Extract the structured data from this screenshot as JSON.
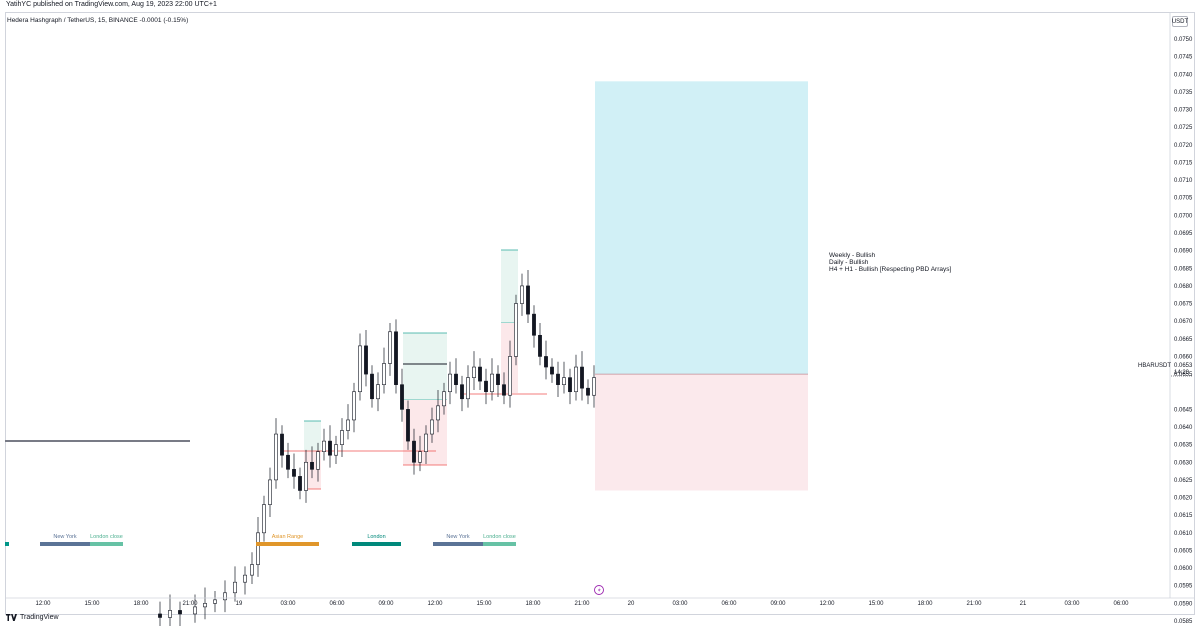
{
  "header": {
    "published_line": "YatihYC published on TradingView.com, Aug 19, 2023 22:00 UTC+1",
    "symbol_legend": "Hedera Hashgraph / TetherUS, 15, BINANCE  -0.0001 (-0.15%)",
    "currency_button": "USDT"
  },
  "price_scale": {
    "ticks": [
      "0.0750",
      "0.0745",
      "0.0740",
      "0.0735",
      "0.0730",
      "0.0725",
      "0.0720",
      "0.0715",
      "0.0710",
      "0.0705",
      "0.0700",
      "0.0695",
      "0.0690",
      "0.0685",
      "0.0680",
      "0.0675",
      "0.0670",
      "0.0665",
      "0.0660",
      "0.0655",
      "0.0645",
      "0.0640",
      "0.0635",
      "0.0630",
      "0.0625",
      "0.0620",
      "0.0615",
      "0.0610",
      "0.0605",
      "0.0600",
      "0.0595",
      "0.0590",
      "0.0585"
    ],
    "min": 0.0585,
    "max": 0.075,
    "current_symbol": "HBARUSDT",
    "current_price": "0.0653",
    "countdown": "14:20"
  },
  "time_axis": {
    "labels": [
      "12:00",
      "15:00",
      "18:00",
      "21:00",
      "19",
      "03:00",
      "06:00",
      "09:00",
      "12:00",
      "15:00",
      "18:00",
      "21:00",
      "20",
      "03:00",
      "06:00",
      "09:00",
      "12:00",
      "15:00",
      "18:00",
      "21:00",
      "21",
      "03:00",
      "06:00"
    ]
  },
  "sessions": [
    {
      "label": "",
      "color": "#009688",
      "x0": 5,
      "x1": 9,
      "label_color": "#009688"
    },
    {
      "label": "New York",
      "color": "#5b7396",
      "x0": 40,
      "x1": 90,
      "label_color": "#5b7396"
    },
    {
      "label": "London close",
      "color": "#66c2a5",
      "x0": 90,
      "x1": 123,
      "label_color": "#4caf8f"
    },
    {
      "label": "Asian Range",
      "color": "#e0962a",
      "x0": 256,
      "x1": 319,
      "label_color": "#e0962a"
    },
    {
      "label": "London",
      "color": "#00897b",
      "x0": 352,
      "x1": 401,
      "label_color": "#00897b"
    },
    {
      "label": "New York",
      "color": "#5b7396",
      "x0": 433,
      "x1": 483,
      "label_color": "#5b7396"
    },
    {
      "label": "London close",
      "color": "#66c2a5",
      "x0": 483,
      "x1": 516,
      "label_color": "#4caf8f"
    }
  ],
  "position_tool": {
    "entry": 0.0655,
    "target": 0.0738,
    "stop": 0.0622,
    "profit_color": "#d1f0f6",
    "loss_color": "#fbe9ec"
  },
  "annotation": {
    "lines": [
      "Weekly - Bullish",
      "Daily - Bullish",
      "H4 + H1 - Bullish [Respecting PBD Arrays]"
    ]
  },
  "footer": {
    "brand": "TradingView",
    "logo_icon": "tradingview-logo-icon",
    "event_icon": "lightning-event-icon"
  },
  "colors": {
    "bull": "#ffffff",
    "bear": "#131722",
    "grid": "#f0f3fa"
  }
}
